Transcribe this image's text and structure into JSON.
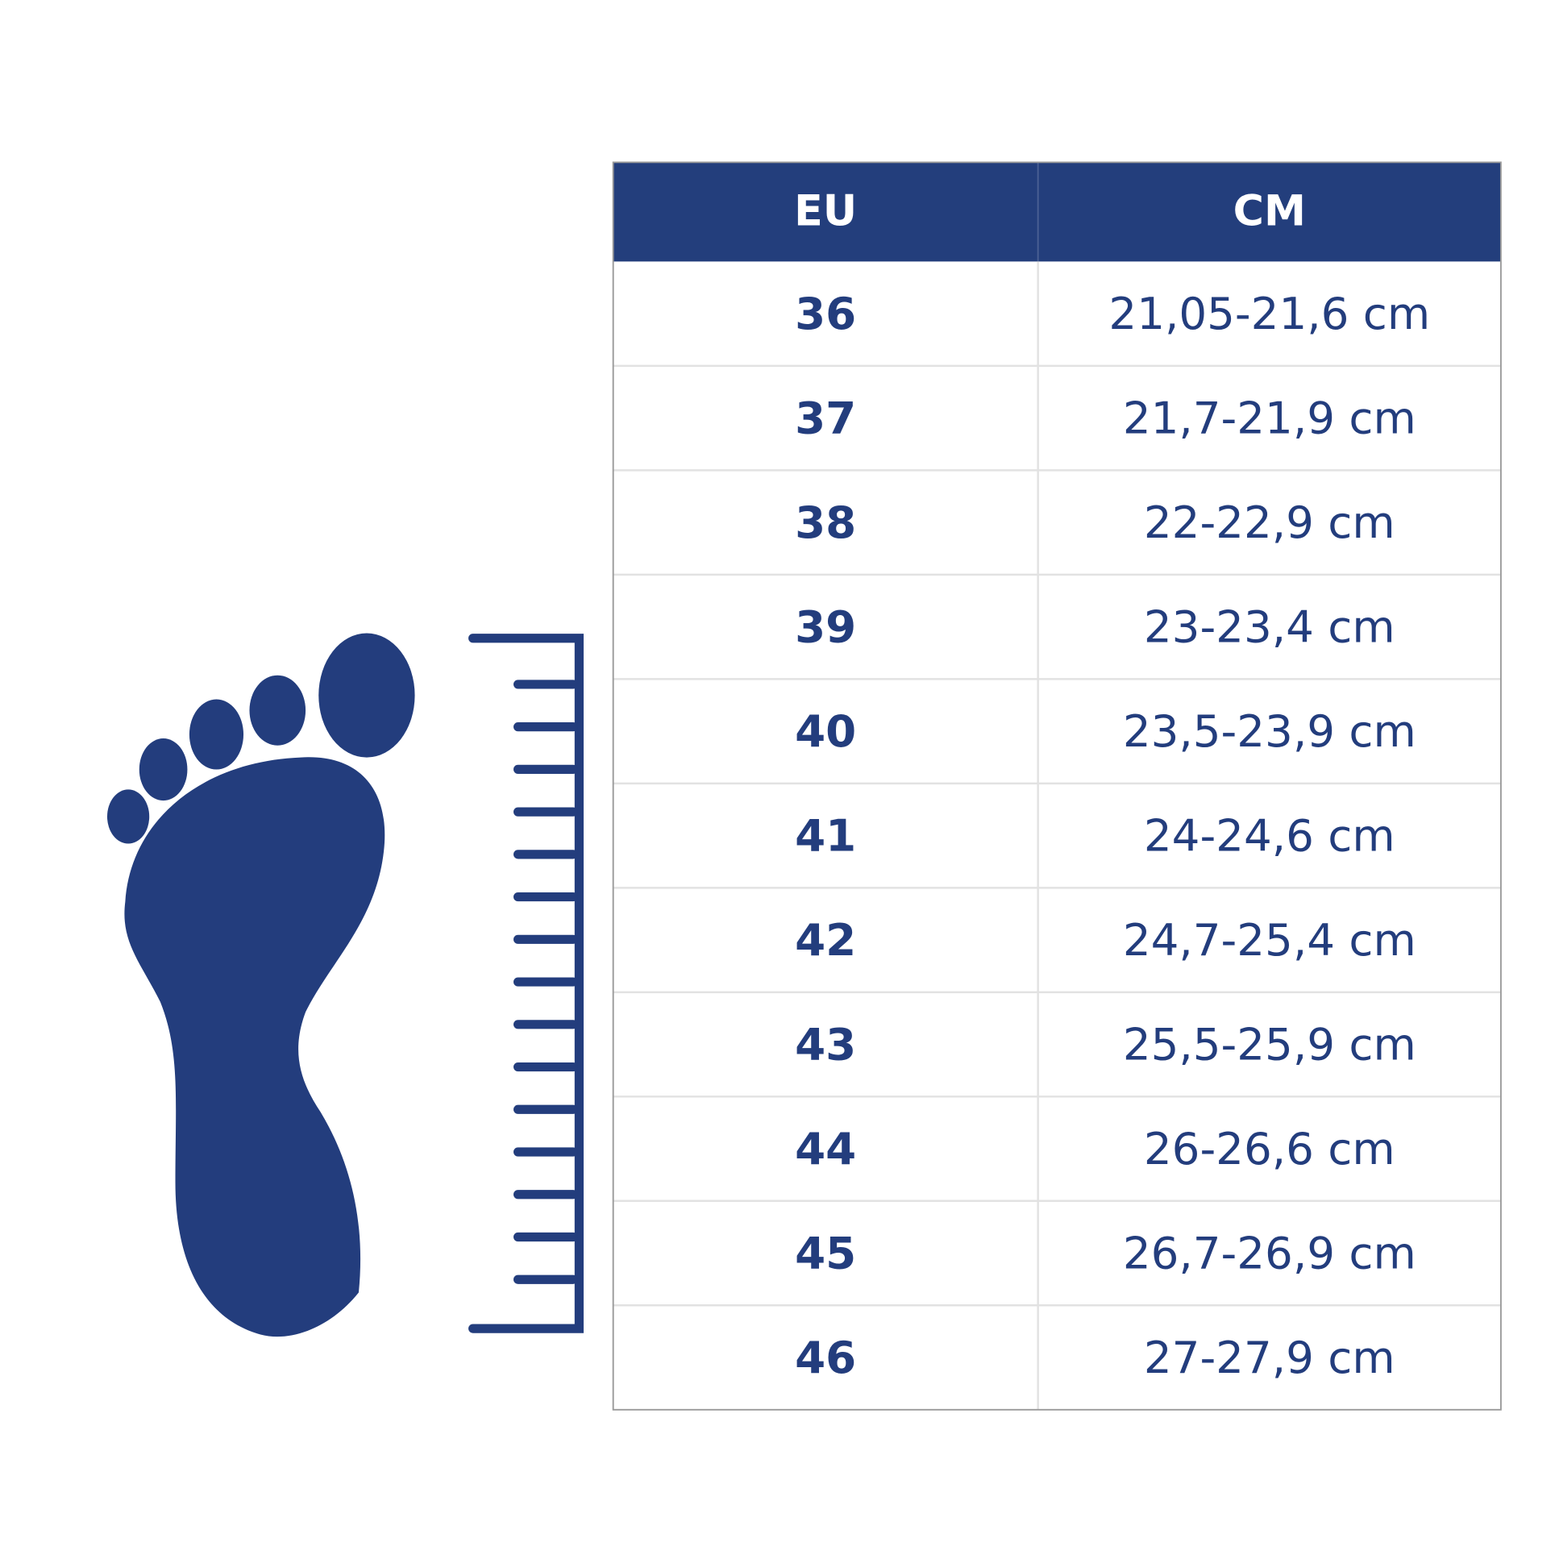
{
  "table": {
    "header": [
      "EU",
      "CM"
    ],
    "rows": [
      [
        "36",
        "21,05-21,6 cm"
      ],
      [
        "37",
        "21,7-21,9 cm"
      ],
      [
        "38",
        "22-22,9 cm"
      ],
      [
        "39",
        "23-23,4 cm"
      ],
      [
        "40",
        "23,5-23,9 cm"
      ],
      [
        "41",
        "24-24,6 cm"
      ],
      [
        "42",
        "24,7-25,4 cm"
      ],
      [
        "43",
        "25,5-25,9 cm"
      ],
      [
        "44",
        "26-26,6 cm"
      ],
      [
        "45",
        "26,7-26,9 cm"
      ],
      [
        "46",
        "27-27,9 cm"
      ]
    ]
  }
}
